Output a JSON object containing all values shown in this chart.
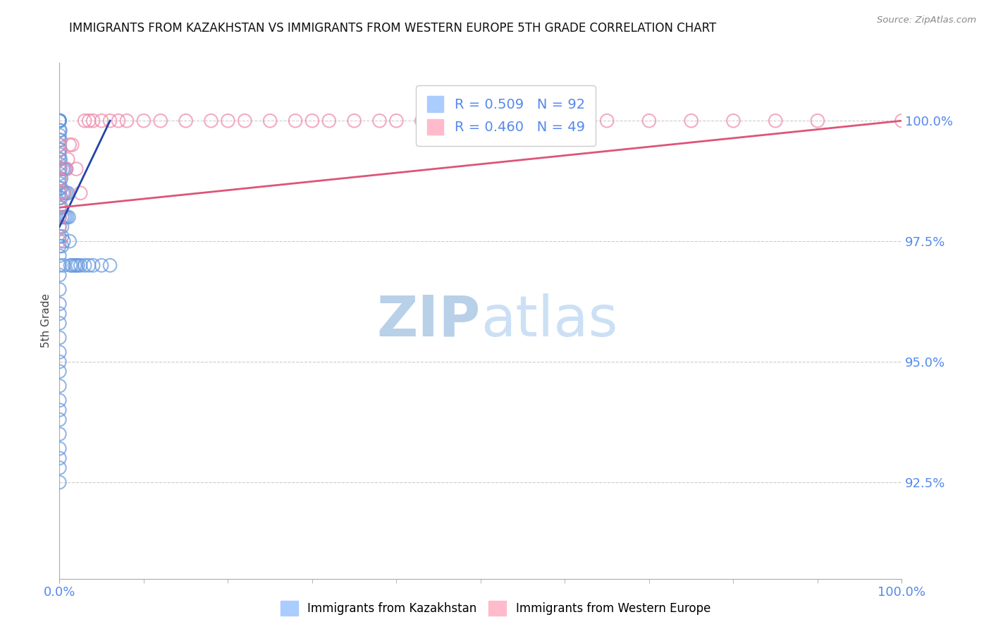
{
  "title": "IMMIGRANTS FROM KAZAKHSTAN VS IMMIGRANTS FROM WESTERN EUROPE 5TH GRADE CORRELATION CHART",
  "source_text": "Source: ZipAtlas.com",
  "ylabel": "5th Grade",
  "watermark_zip": "ZIP",
  "watermark_atlas": "atlas",
  "xlim": [
    0.0,
    100.0
  ],
  "ylim": [
    90.5,
    101.2
  ],
  "yticks": [
    92.5,
    95.0,
    97.5,
    100.0
  ],
  "ytick_labels": [
    "92.5%",
    "95.0%",
    "97.5%",
    "100.0%"
  ],
  "xtick_labels": [
    "0.0%",
    "100.0%"
  ],
  "blue_color": "#6699dd",
  "pink_color": "#ee88aa",
  "blue_line_color": "#2244aa",
  "pink_line_color": "#dd5577",
  "blue_R": 0.509,
  "blue_N": 92,
  "pink_R": 0.46,
  "pink_N": 49,
  "grid_color": "#cccccc",
  "background_color": "#ffffff",
  "title_fontsize": 12,
  "tick_color": "#5588ee",
  "watermark_color": "#cce0f5",
  "legend_box_color": "#ffffff",
  "legend_border_color": "#cccccc",
  "blue_scatter_x": [
    0.0,
    0.0,
    0.0,
    0.0,
    0.0,
    0.0,
    0.0,
    0.0,
    0.0,
    0.0,
    0.0,
    0.0,
    0.0,
    0.0,
    0.0,
    0.0,
    0.0,
    0.0,
    0.0,
    0.0,
    0.0,
    0.0,
    0.0,
    0.0,
    0.0,
    0.0,
    0.0,
    0.0,
    0.0,
    0.0,
    0.1,
    0.1,
    0.1,
    0.1,
    0.1,
    0.2,
    0.2,
    0.2,
    0.2,
    0.3,
    0.3,
    0.3,
    0.3,
    0.4,
    0.4,
    0.5,
    0.5,
    0.5,
    0.6,
    0.6,
    0.7,
    0.8,
    0.8,
    0.9,
    1.0,
    1.1,
    1.2,
    1.3,
    1.5,
    1.8,
    2.0,
    2.2,
    2.5,
    3.0,
    3.5,
    4.0,
    5.0,
    6.0,
    0.0,
    0.0,
    0.0,
    0.0,
    0.0,
    0.0,
    0.0,
    0.0,
    0.0,
    0.0,
    0.0,
    0.0,
    0.0,
    0.0,
    0.0,
    0.0,
    0.0,
    0.0,
    0.0,
    0.0,
    0.0,
    0.0,
    0.0,
    0.0
  ],
  "blue_scatter_y": [
    100.0,
    100.0,
    100.0,
    100.0,
    100.0,
    100.0,
    100.0,
    100.0,
    100.0,
    100.0,
    99.8,
    99.7,
    99.6,
    99.5,
    99.4,
    99.3,
    99.2,
    99.1,
    99.0,
    98.9,
    98.8,
    98.7,
    98.6,
    98.5,
    98.4,
    98.2,
    98.0,
    97.8,
    97.6,
    97.4,
    99.8,
    99.6,
    99.4,
    99.2,
    99.0,
    98.8,
    98.6,
    98.4,
    98.2,
    98.0,
    97.8,
    97.6,
    97.4,
    99.0,
    98.5,
    98.0,
    97.5,
    97.0,
    99.0,
    98.5,
    98.0,
    99.0,
    98.5,
    98.0,
    98.5,
    98.0,
    97.5,
    97.0,
    97.0,
    97.0,
    97.0,
    97.0,
    97.0,
    97.0,
    97.0,
    97.0,
    97.0,
    97.0,
    97.2,
    97.0,
    96.8,
    96.5,
    96.2,
    96.0,
    95.8,
    95.5,
    95.2,
    95.0,
    94.8,
    94.5,
    94.2,
    94.0,
    93.8,
    93.5,
    93.2,
    93.0,
    92.8,
    92.5,
    100.0,
    100.0,
    100.0,
    100.0
  ],
  "pink_scatter_x": [
    0.0,
    0.0,
    0.0,
    0.0,
    0.0,
    0.0,
    0.0,
    0.0,
    0.5,
    0.8,
    1.0,
    1.2,
    1.5,
    2.0,
    2.5,
    3.0,
    3.5,
    4.0,
    5.0,
    6.0,
    7.0,
    8.0,
    10.0,
    12.0,
    15.0,
    18.0,
    20.0,
    22.0,
    25.0,
    28.0,
    30.0,
    32.0,
    35.0,
    38.0,
    40.0,
    43.0,
    45.0,
    48.0,
    50.0,
    55.0,
    58.0,
    60.0,
    65.0,
    70.0,
    75.0,
    80.0,
    85.0,
    90.0,
    100.0
  ],
  "pink_scatter_y": [
    99.5,
    99.0,
    98.8,
    98.5,
    98.2,
    98.0,
    97.8,
    97.5,
    98.5,
    99.0,
    99.2,
    99.5,
    99.5,
    99.0,
    98.5,
    100.0,
    100.0,
    100.0,
    100.0,
    100.0,
    100.0,
    100.0,
    100.0,
    100.0,
    100.0,
    100.0,
    100.0,
    100.0,
    100.0,
    100.0,
    100.0,
    100.0,
    100.0,
    100.0,
    100.0,
    100.0,
    100.0,
    100.0,
    100.0,
    100.0,
    100.0,
    100.0,
    100.0,
    100.0,
    100.0,
    100.0,
    100.0,
    100.0,
    100.0
  ],
  "blue_line_x0": 0.0,
  "blue_line_y0": 97.8,
  "blue_line_x1": 6.0,
  "blue_line_y1": 100.0,
  "pink_line_x0": 0.0,
  "pink_line_y0": 98.2,
  "pink_line_x1": 100.0,
  "pink_line_y1": 100.0
}
